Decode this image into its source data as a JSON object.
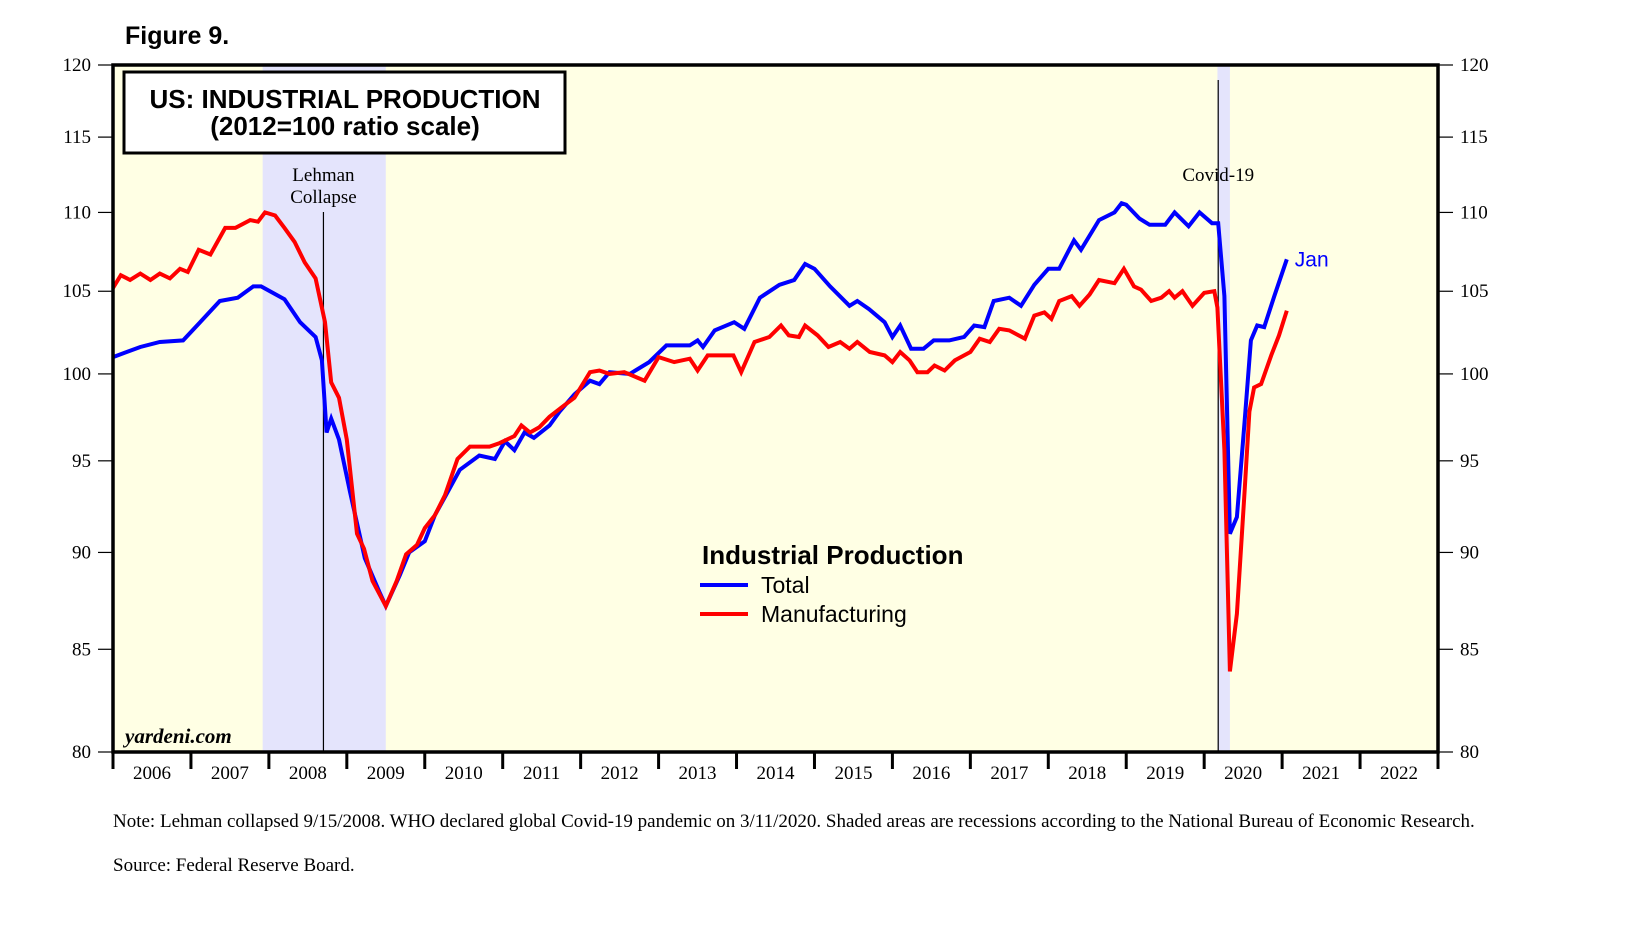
{
  "figure_label": "Figure 9.",
  "chart_data": {
    "type": "line",
    "title": "US: INDUSTRIAL PRODUCTION",
    "subtitle": "(2012=100 ratio scale)",
    "y_scale": "log",
    "ylim": [
      80,
      120
    ],
    "yticks": [
      80,
      85,
      90,
      95,
      100,
      105,
      110,
      115,
      120
    ],
    "xlim": [
      2006,
      2023
    ],
    "xtick_labels": [
      "2006",
      "2007",
      "2008",
      "2009",
      "2010",
      "2011",
      "2012",
      "2013",
      "2014",
      "2015",
      "2016",
      "2017",
      "2018",
      "2019",
      "2020",
      "2021",
      "2022"
    ],
    "legend_title": "Industrial Production",
    "legend_position": "center",
    "recessions": [
      [
        2007.92,
        2009.5
      ],
      [
        2020.17,
        2020.33
      ]
    ],
    "annotations": [
      {
        "text_line1": "Lehman",
        "text_line2": "Collapse",
        "x": 2008.7
      },
      {
        "text_line1": "Covid-19",
        "text_line2": "",
        "x": 2020.18
      }
    ],
    "end_label": "Jan",
    "watermark": "yardeni.com",
    "series": [
      {
        "name": "Total",
        "color": "#0000ff",
        "points": [
          [
            2006.0,
            101.0
          ],
          [
            2006.35,
            101.6
          ],
          [
            2006.6,
            101.9
          ],
          [
            2006.9,
            102.0
          ],
          [
            2007.1,
            103.0
          ],
          [
            2007.37,
            104.4
          ],
          [
            2007.6,
            104.6
          ],
          [
            2007.8,
            105.3
          ],
          [
            2007.9,
            105.3
          ],
          [
            2008.2,
            104.5
          ],
          [
            2008.4,
            103.1
          ],
          [
            2008.6,
            102.2
          ],
          [
            2008.68,
            100.8
          ],
          [
            2008.74,
            96.6
          ],
          [
            2008.8,
            97.4
          ],
          [
            2008.9,
            96.2
          ],
          [
            2009.04,
            93.3
          ],
          [
            2009.23,
            89.7
          ],
          [
            2009.42,
            87.9
          ],
          [
            2009.5,
            87.2
          ],
          [
            2009.68,
            88.8
          ],
          [
            2009.8,
            90.0
          ],
          [
            2010.0,
            90.6
          ],
          [
            2010.13,
            92.0
          ],
          [
            2010.26,
            93.0
          ],
          [
            2010.45,
            94.5
          ],
          [
            2010.7,
            95.3
          ],
          [
            2010.9,
            95.1
          ],
          [
            2011.03,
            96.1
          ],
          [
            2011.15,
            95.6
          ],
          [
            2011.28,
            96.6
          ],
          [
            2011.4,
            96.3
          ],
          [
            2011.6,
            97.0
          ],
          [
            2011.73,
            97.8
          ],
          [
            2011.92,
            98.8
          ],
          [
            2012.12,
            99.6
          ],
          [
            2012.24,
            99.4
          ],
          [
            2012.37,
            100.1
          ],
          [
            2012.63,
            100.0
          ],
          [
            2012.88,
            100.7
          ],
          [
            2013.1,
            101.7
          ],
          [
            2013.4,
            101.7
          ],
          [
            2013.5,
            102.0
          ],
          [
            2013.57,
            101.6
          ],
          [
            2013.72,
            102.6
          ],
          [
            2013.97,
            103.1
          ],
          [
            2014.1,
            102.7
          ],
          [
            2014.3,
            104.6
          ],
          [
            2014.55,
            105.4
          ],
          [
            2014.74,
            105.7
          ],
          [
            2014.88,
            106.7
          ],
          [
            2015.0,
            106.4
          ],
          [
            2015.2,
            105.3
          ],
          [
            2015.45,
            104.1
          ],
          [
            2015.55,
            104.4
          ],
          [
            2015.7,
            103.9
          ],
          [
            2015.9,
            103.1
          ],
          [
            2016.0,
            102.2
          ],
          [
            2016.1,
            102.9
          ],
          [
            2016.24,
            101.5
          ],
          [
            2016.4,
            101.5
          ],
          [
            2016.53,
            102.0
          ],
          [
            2016.73,
            102.0
          ],
          [
            2016.92,
            102.2
          ],
          [
            2017.05,
            102.9
          ],
          [
            2017.18,
            102.8
          ],
          [
            2017.3,
            104.4
          ],
          [
            2017.5,
            104.6
          ],
          [
            2017.65,
            104.1
          ],
          [
            2017.82,
            105.4
          ],
          [
            2018.0,
            106.4
          ],
          [
            2018.14,
            106.4
          ],
          [
            2018.33,
            108.2
          ],
          [
            2018.42,
            107.6
          ],
          [
            2018.65,
            109.5
          ],
          [
            2018.85,
            110.0
          ],
          [
            2018.94,
            110.6
          ],
          [
            2019.0,
            110.5
          ],
          [
            2019.17,
            109.6
          ],
          [
            2019.3,
            109.2
          ],
          [
            2019.5,
            109.2
          ],
          [
            2019.62,
            110.0
          ],
          [
            2019.8,
            109.1
          ],
          [
            2019.94,
            110.0
          ],
          [
            2020.1,
            109.3
          ],
          [
            2020.18,
            109.3
          ],
          [
            2020.26,
            104.7
          ],
          [
            2020.33,
            91.0
          ],
          [
            2020.42,
            91.9
          ],
          [
            2020.52,
            97.3
          ],
          [
            2020.6,
            102.0
          ],
          [
            2020.68,
            102.9
          ],
          [
            2020.77,
            102.8
          ],
          [
            2020.9,
            104.7
          ],
          [
            2021.06,
            107.0
          ]
        ]
      },
      {
        "name": "Manufacturing",
        "color": "#ff0000",
        "points": [
          [
            2006.0,
            105.2
          ],
          [
            2006.1,
            106.0
          ],
          [
            2006.22,
            105.7
          ],
          [
            2006.35,
            106.1
          ],
          [
            2006.48,
            105.7
          ],
          [
            2006.6,
            106.1
          ],
          [
            2006.73,
            105.8
          ],
          [
            2006.86,
            106.4
          ],
          [
            2006.96,
            106.2
          ],
          [
            2007.1,
            107.6
          ],
          [
            2007.25,
            107.3
          ],
          [
            2007.44,
            109.0
          ],
          [
            2007.57,
            109.0
          ],
          [
            2007.76,
            109.5
          ],
          [
            2007.86,
            109.4
          ],
          [
            2007.95,
            110.0
          ],
          [
            2008.08,
            109.8
          ],
          [
            2008.2,
            109.0
          ],
          [
            2008.33,
            108.1
          ],
          [
            2008.46,
            106.8
          ],
          [
            2008.6,
            105.8
          ],
          [
            2008.72,
            103.1
          ],
          [
            2008.8,
            99.5
          ],
          [
            2008.9,
            98.6
          ],
          [
            2009.0,
            96.2
          ],
          [
            2009.13,
            91.0
          ],
          [
            2009.22,
            90.2
          ],
          [
            2009.33,
            88.5
          ],
          [
            2009.5,
            87.2
          ],
          [
            2009.64,
            88.5
          ],
          [
            2009.76,
            89.9
          ],
          [
            2009.9,
            90.4
          ],
          [
            2010.0,
            91.3
          ],
          [
            2010.13,
            92.0
          ],
          [
            2010.26,
            93.1
          ],
          [
            2010.42,
            95.1
          ],
          [
            2010.58,
            95.8
          ],
          [
            2010.83,
            95.8
          ],
          [
            2010.96,
            96.0
          ],
          [
            2011.15,
            96.4
          ],
          [
            2011.24,
            97.0
          ],
          [
            2011.35,
            96.6
          ],
          [
            2011.47,
            96.9
          ],
          [
            2011.6,
            97.5
          ],
          [
            2011.8,
            98.2
          ],
          [
            2011.92,
            98.6
          ],
          [
            2012.12,
            100.1
          ],
          [
            2012.24,
            100.2
          ],
          [
            2012.37,
            100.0
          ],
          [
            2012.56,
            100.1
          ],
          [
            2012.82,
            99.6
          ],
          [
            2013.0,
            101.0
          ],
          [
            2013.2,
            100.7
          ],
          [
            2013.4,
            100.9
          ],
          [
            2013.5,
            100.2
          ],
          [
            2013.63,
            101.1
          ],
          [
            2013.96,
            101.1
          ],
          [
            2014.06,
            100.1
          ],
          [
            2014.23,
            101.9
          ],
          [
            2014.42,
            102.2
          ],
          [
            2014.57,
            102.9
          ],
          [
            2014.67,
            102.3
          ],
          [
            2014.8,
            102.2
          ],
          [
            2014.88,
            102.9
          ],
          [
            2015.04,
            102.3
          ],
          [
            2015.18,
            101.6
          ],
          [
            2015.33,
            101.9
          ],
          [
            2015.45,
            101.5
          ],
          [
            2015.55,
            101.9
          ],
          [
            2015.71,
            101.3
          ],
          [
            2015.9,
            101.1
          ],
          [
            2016.0,
            100.7
          ],
          [
            2016.1,
            101.3
          ],
          [
            2016.22,
            100.8
          ],
          [
            2016.32,
            100.1
          ],
          [
            2016.45,
            100.1
          ],
          [
            2016.54,
            100.5
          ],
          [
            2016.67,
            100.2
          ],
          [
            2016.8,
            100.8
          ],
          [
            2017.0,
            101.3
          ],
          [
            2017.12,
            102.1
          ],
          [
            2017.25,
            101.9
          ],
          [
            2017.37,
            102.7
          ],
          [
            2017.5,
            102.6
          ],
          [
            2017.7,
            102.1
          ],
          [
            2017.82,
            103.5
          ],
          [
            2017.95,
            103.7
          ],
          [
            2018.04,
            103.3
          ],
          [
            2018.14,
            104.4
          ],
          [
            2018.3,
            104.7
          ],
          [
            2018.4,
            104.1
          ],
          [
            2018.53,
            104.8
          ],
          [
            2018.65,
            105.7
          ],
          [
            2018.85,
            105.5
          ],
          [
            2018.97,
            106.4
          ],
          [
            2019.1,
            105.3
          ],
          [
            2019.19,
            105.1
          ],
          [
            2019.32,
            104.4
          ],
          [
            2019.45,
            104.6
          ],
          [
            2019.55,
            105.0
          ],
          [
            2019.62,
            104.6
          ],
          [
            2019.72,
            105.0
          ],
          [
            2019.85,
            104.1
          ],
          [
            2020.0,
            104.9
          ],
          [
            2020.13,
            105.0
          ],
          [
            2020.17,
            104.0
          ],
          [
            2020.26,
            95.6
          ],
          [
            2020.33,
            83.9
          ],
          [
            2020.42,
            86.8
          ],
          [
            2020.52,
            93.4
          ],
          [
            2020.58,
            97.8
          ],
          [
            2020.64,
            99.2
          ],
          [
            2020.73,
            99.4
          ],
          [
            2020.86,
            101.1
          ],
          [
            2020.96,
            102.3
          ],
          [
            2021.06,
            103.8
          ]
        ]
      }
    ]
  },
  "notes": {
    "line1": "Note: Lehman collapsed 9/15/2008. WHO declared global Covid-19 pandemic on 3/11/2020. Shaded areas are recessions according to the National Bureau of Economic Research.",
    "source": "Source: Federal Reserve Board."
  }
}
